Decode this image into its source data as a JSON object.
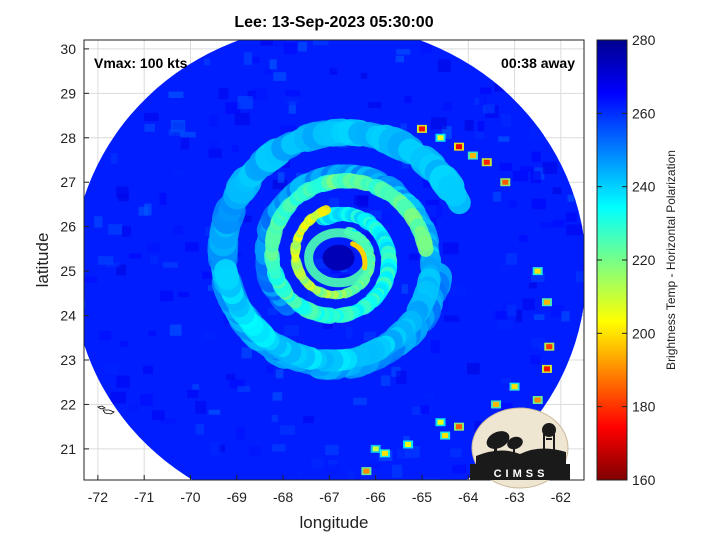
{
  "chart_data": {
    "type": "heatmap",
    "title": "Lee: 13-Sep-2023 05:30:00",
    "xlabel": "longitude",
    "ylabel": "latitude",
    "xlim": [
      -72.3,
      -61.5
    ],
    "ylim": [
      20.3,
      30.2
    ],
    "xticks": [
      -72,
      -71,
      -70,
      -69,
      -68,
      -67,
      -66,
      -65,
      -64,
      -63,
      -62
    ],
    "yticks": [
      21,
      22,
      23,
      24,
      25,
      26,
      27,
      28,
      29,
      30
    ],
    "grid": true,
    "annotations": {
      "left": "Vmax: 100 kts",
      "right": "00:38 away"
    },
    "colorbar": {
      "label": "Brightness Temp - Horizontal Polarization",
      "range": [
        160,
        280
      ],
      "ticks": [
        160,
        180,
        200,
        220,
        240,
        260,
        280
      ],
      "colormap": [
        "#7f0000",
        "#ff0000",
        "#ffff00",
        "#00ffff",
        "#0000ff",
        "#00008f"
      ]
    },
    "storm_center": {
      "lon": -66.8,
      "lat": 25.3
    },
    "swath": {
      "center_lon": -67.0,
      "center_lat": 25.0,
      "radius_deg": 5.55
    },
    "field": {
      "background_temp": 262,
      "eye_temp": 275,
      "inner_ring_temp": 225,
      "rainband_temp": 245,
      "convective_min_temp": 175
    }
  },
  "logo": {
    "text": "CIMSS"
  }
}
